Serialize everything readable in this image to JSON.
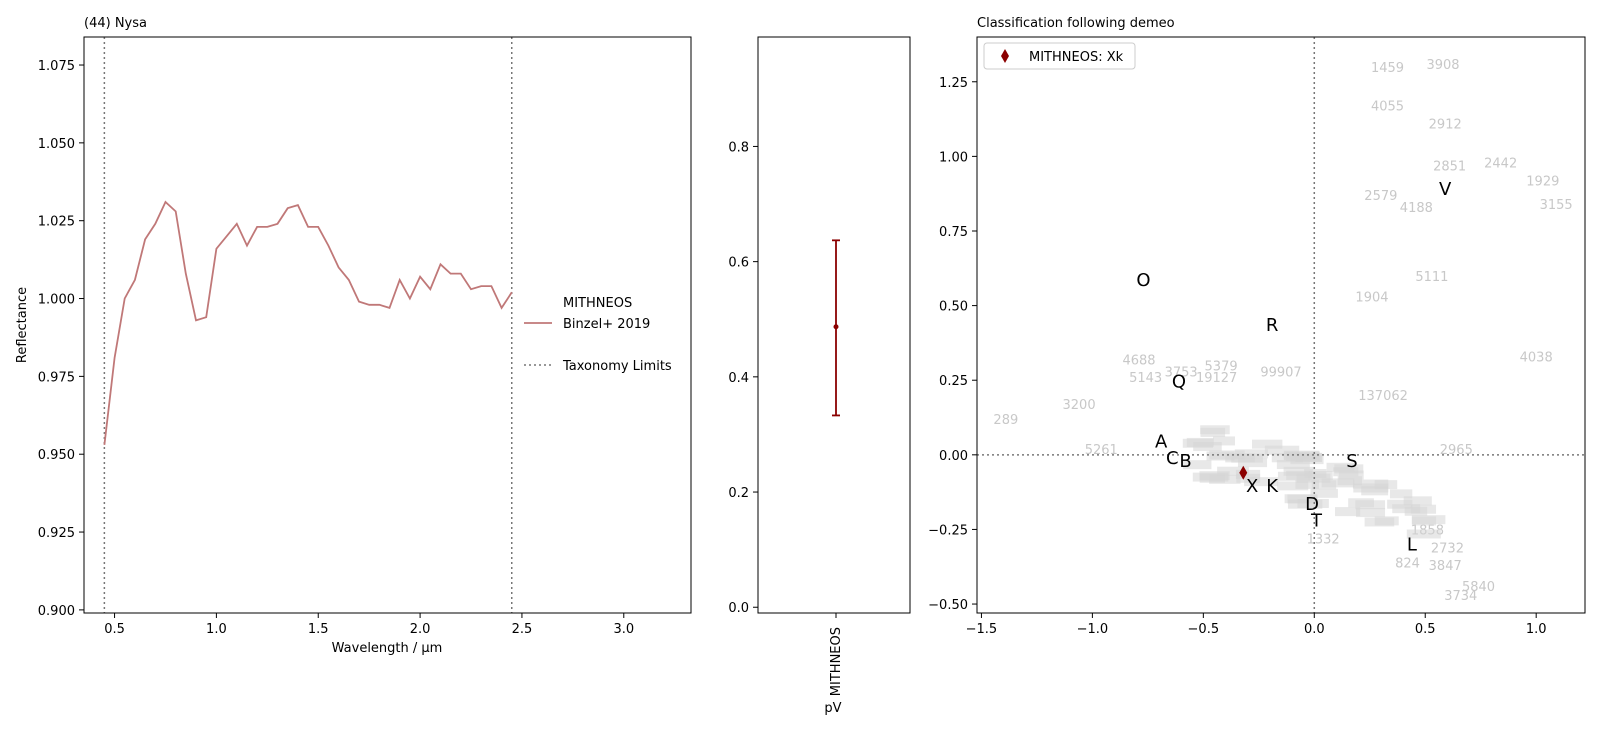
{
  "chart_data": [
    {
      "type": "line",
      "title": "(44) Nysa",
      "xlabel": "Wavelength / µm",
      "ylabel": "Reflectance",
      "xlim": [
        0.35,
        3.33
      ],
      "ylim": [
        0.899,
        1.084
      ],
      "xticks": [
        "0.5",
        "1.0",
        "1.5",
        "2.0",
        "2.5",
        "3.0"
      ],
      "yticks": [
        "0.900",
        "0.925",
        "0.950",
        "0.975",
        "1.000",
        "1.025",
        "1.050",
        "1.075"
      ],
      "series": [
        {
          "name": "Binzel+ 2019",
          "color": "#c07878",
          "x": [
            0.45,
            0.5,
            0.55,
            0.6,
            0.65,
            0.7,
            0.75,
            0.8,
            0.85,
            0.9,
            0.95,
            1.0,
            1.05,
            1.1,
            1.15,
            1.2,
            1.25,
            1.3,
            1.35,
            1.4,
            1.45,
            1.5,
            1.55,
            1.6,
            1.65,
            1.7,
            1.75,
            1.8,
            1.85,
            1.9,
            1.95,
            2.0,
            2.05,
            2.1,
            2.15,
            2.2,
            2.25,
            2.3,
            2.35,
            2.4,
            2.45
          ],
          "y": [
            0.953,
            0.981,
            1.0,
            1.006,
            1.019,
            1.024,
            1.031,
            1.028,
            1.008,
            0.993,
            0.994,
            1.016,
            1.02,
            1.024,
            1.017,
            1.023,
            1.023,
            1.024,
            1.029,
            1.03,
            1.023,
            1.023,
            1.017,
            1.01,
            1.006,
            0.999,
            0.998,
            0.998,
            0.997,
            1.006,
            1.0,
            1.007,
            1.003,
            1.011,
            1.008,
            1.008,
            1.003,
            1.004,
            1.004,
            0.997,
            1.002
          ]
        }
      ],
      "vlines": [
        0.45,
        2.45
      ],
      "legend": {
        "group_label": "MITHNEOS",
        "entries": [
          "Binzel+ 2019",
          "Taxonomy Limits"
        ],
        "placement": "right"
      }
    },
    {
      "type": "scatter",
      "title": "",
      "ylim": [
        -0.01,
        0.99
      ],
      "yticks": [
        "0.0",
        "0.2",
        "0.4",
        "0.6",
        "0.8"
      ],
      "categories": [
        "MITHNEOS"
      ],
      "xlabel": "pV",
      "values": [
        0.487
      ],
      "error_low": [
        0.333
      ],
      "error_high": [
        0.637
      ],
      "color": "#8b0000"
    },
    {
      "type": "scatter",
      "title": "Classification following demeo",
      "xlim": [
        -1.52,
        1.22
      ],
      "ylim": [
        -0.53,
        1.4
      ],
      "xticks": [
        "−1.5",
        "−1.0",
        "−0.5",
        "0.0",
        "0.5",
        "1.0"
      ],
      "yticks": [
        "−0.50",
        "−0.25",
        "0.00",
        "0.25",
        "0.50",
        "0.75",
        "1.00",
        "1.25"
      ],
      "hline": 0,
      "vline": 0,
      "legend": {
        "entries": [
          "MITHNEOS: Xk"
        ],
        "placement": "top-left"
      },
      "marker": {
        "x": -0.32,
        "y": -0.06,
        "color": "#8b0000"
      },
      "class_labels": [
        {
          "t": "O",
          "x": -0.77,
          "y": 0.585
        },
        {
          "t": "R",
          "x": -0.19,
          "y": 0.435
        },
        {
          "t": "V",
          "x": 0.59,
          "y": 0.89
        },
        {
          "t": "Q",
          "x": -0.61,
          "y": 0.245
        },
        {
          "t": "A",
          "x": -0.69,
          "y": 0.045
        },
        {
          "t": "C",
          "x": -0.64,
          "y": -0.01
        },
        {
          "t": "B",
          "x": -0.58,
          "y": -0.02
        },
        {
          "t": "S",
          "x": 0.17,
          "y": -0.02
        },
        {
          "t": "X",
          "x": -0.28,
          "y": -0.105
        },
        {
          "t": "K",
          "x": -0.19,
          "y": -0.105
        },
        {
          "t": "D",
          "x": -0.01,
          "y": -0.165
        },
        {
          "t": "T",
          "x": 0.01,
          "y": -0.22
        },
        {
          "t": "L",
          "x": 0.44,
          "y": -0.3
        }
      ],
      "numbers": [
        {
          "t": "1459",
          "x": 0.33,
          "y": 1.3
        },
        {
          "t": "3908",
          "x": 0.58,
          "y": 1.31
        },
        {
          "t": "4055",
          "x": 0.33,
          "y": 1.17
        },
        {
          "t": "2912",
          "x": 0.59,
          "y": 1.11
        },
        {
          "t": "2851",
          "x": 0.61,
          "y": 0.97
        },
        {
          "t": "2442",
          "x": 0.84,
          "y": 0.98
        },
        {
          "t": "1929",
          "x": 1.03,
          "y": 0.92
        },
        {
          "t": "2579",
          "x": 0.3,
          "y": 0.87
        },
        {
          "t": "3155",
          "x": 1.09,
          "y": 0.84
        },
        {
          "t": "4188",
          "x": 0.46,
          "y": 0.83
        },
        {
          "t": "5111",
          "x": 0.53,
          "y": 0.6
        },
        {
          "t": "1904",
          "x": 0.26,
          "y": 0.53
        },
        {
          "t": "4038",
          "x": 1.0,
          "y": 0.33
        },
        {
          "t": "4688",
          "x": -0.79,
          "y": 0.32
        },
        {
          "t": "5379",
          "x": -0.42,
          "y": 0.3
        },
        {
          "t": "3753",
          "x": -0.6,
          "y": 0.28
        },
        {
          "t": "99907",
          "x": -0.15,
          "y": 0.28
        },
        {
          "t": "5143",
          "x": -0.76,
          "y": 0.26
        },
        {
          "t": "19127",
          "x": -0.44,
          "y": 0.26
        },
        {
          "t": "137062",
          "x": 0.31,
          "y": 0.2
        },
        {
          "t": "289",
          "x": -1.39,
          "y": 0.12
        },
        {
          "t": "3200",
          "x": -1.06,
          "y": 0.17
        },
        {
          "t": "2965",
          "x": 0.64,
          "y": 0.02
        },
        {
          "t": "5261",
          "x": -0.96,
          "y": 0.02
        },
        {
          "t": "1858",
          "x": 0.51,
          "y": -0.25
        },
        {
          "t": "3734",
          "x": 0.66,
          "y": -0.47
        },
        {
          "t": "5840",
          "x": 0.74,
          "y": -0.44
        },
        {
          "t": "1332",
          "x": 0.04,
          "y": -0.28
        },
        {
          "t": "824",
          "x": 0.42,
          "y": -0.36
        },
        {
          "t": "2732",
          "x": 0.6,
          "y": -0.31
        },
        {
          "t": "3847",
          "x": 0.59,
          "y": -0.37
        }
      ]
    }
  ]
}
